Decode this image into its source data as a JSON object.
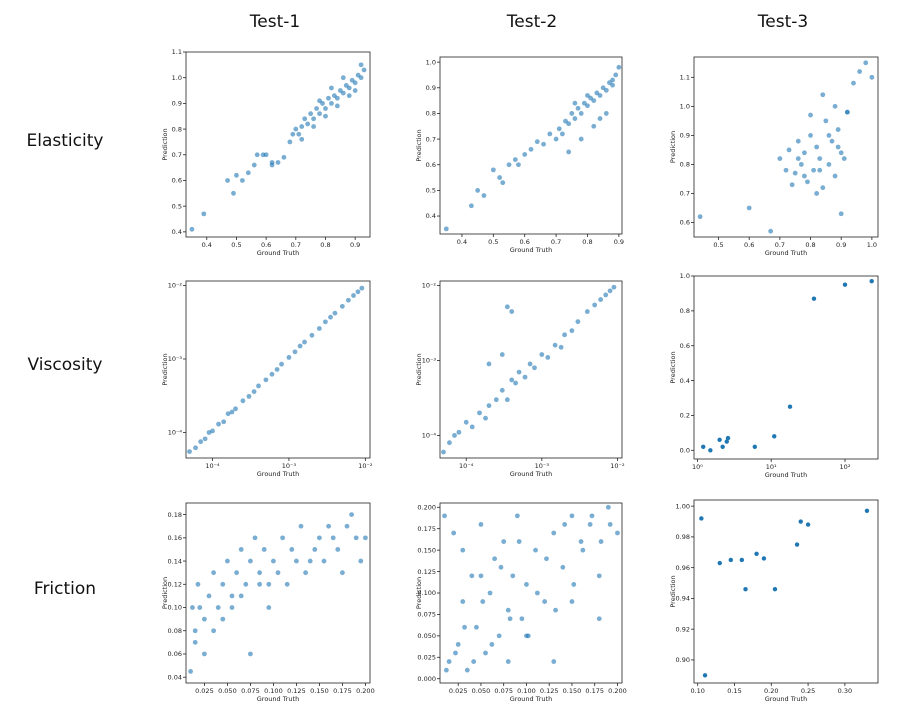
{
  "columns": [
    "Test-1",
    "Test-2",
    "Test-3"
  ],
  "rows": [
    "Elasticity",
    "Viscosity",
    "Friction"
  ],
  "colors": {
    "point": "#1f77b4",
    "axis": "#222222"
  },
  "chart_data": [
    {
      "type": "scatter",
      "row": "Elasticity",
      "col": "Test-1",
      "xlabel": "Ground Truth",
      "ylabel": "Prediction",
      "xlim": [
        0.33,
        0.95
      ],
      "ylim": [
        0.38,
        1.1
      ],
      "xscale": "linear",
      "yscale": "linear",
      "xticks": [
        0.4,
        0.5,
        0.6,
        0.7,
        0.8,
        0.9
      ],
      "yticks": [
        0.4,
        0.5,
        0.6,
        0.7,
        0.8,
        0.9,
        1.0,
        1.1
      ],
      "xtick_labels": [
        "0.4",
        "0.5",
        "0.6",
        "0.7",
        "0.8",
        "0.9"
      ],
      "ytick_labels": [
        "0.4",
        "0.5",
        "0.6",
        "0.7",
        "0.8",
        "0.9",
        "1.0",
        "1.1"
      ],
      "x": [
        0.35,
        0.39,
        0.47,
        0.49,
        0.5,
        0.52,
        0.54,
        0.56,
        0.57,
        0.59,
        0.6,
        0.62,
        0.62,
        0.64,
        0.66,
        0.68,
        0.69,
        0.7,
        0.71,
        0.72,
        0.73,
        0.74,
        0.75,
        0.76,
        0.77,
        0.78,
        0.79,
        0.8,
        0.81,
        0.82,
        0.83,
        0.84,
        0.85,
        0.86,
        0.87,
        0.88,
        0.89,
        0.9,
        0.91,
        0.92,
        0.93,
        0.72,
        0.76,
        0.8,
        0.84,
        0.88,
        0.92,
        0.78,
        0.82,
        0.86,
        0.9
      ],
      "y": [
        0.41,
        0.47,
        0.6,
        0.55,
        0.62,
        0.6,
        0.63,
        0.66,
        0.7,
        0.7,
        0.7,
        0.67,
        0.66,
        0.67,
        0.69,
        0.75,
        0.78,
        0.8,
        0.78,
        0.81,
        0.84,
        0.82,
        0.86,
        0.84,
        0.88,
        0.86,
        0.9,
        0.88,
        0.92,
        0.9,
        0.93,
        0.92,
        0.95,
        0.94,
        0.97,
        0.96,
        0.99,
        0.98,
        1.01,
        1.0,
        1.03,
        0.76,
        0.81,
        0.85,
        0.89,
        0.93,
        1.05,
        0.91,
        0.96,
        1.0,
        0.95
      ]
    },
    {
      "type": "scatter",
      "row": "Elasticity",
      "col": "Test-2",
      "xlabel": "Ground Truth",
      "ylabel": "Prediction",
      "xlim": [
        0.33,
        0.91
      ],
      "ylim": [
        0.33,
        1.02
      ],
      "xscale": "linear",
      "yscale": "linear",
      "xticks": [
        0.4,
        0.5,
        0.6,
        0.7,
        0.8,
        0.9
      ],
      "yticks": [
        0.4,
        0.5,
        0.6,
        0.7,
        0.8,
        0.9,
        1.0
      ],
      "xtick_labels": [
        "0.4",
        "0.5",
        "0.6",
        "0.7",
        "0.8",
        "0.9"
      ],
      "ytick_labels": [
        "0.4",
        "0.5",
        "0.6",
        "0.7",
        "0.8",
        "0.9",
        "1.0"
      ],
      "x": [
        0.35,
        0.43,
        0.45,
        0.47,
        0.5,
        0.52,
        0.53,
        0.55,
        0.57,
        0.58,
        0.6,
        0.62,
        0.64,
        0.66,
        0.68,
        0.7,
        0.71,
        0.72,
        0.73,
        0.74,
        0.75,
        0.76,
        0.77,
        0.78,
        0.79,
        0.8,
        0.81,
        0.82,
        0.83,
        0.84,
        0.85,
        0.86,
        0.87,
        0.88,
        0.89,
        0.9,
        0.74,
        0.78,
        0.82,
        0.86,
        0.76,
        0.8,
        0.84,
        0.88
      ],
      "y": [
        0.35,
        0.44,
        0.5,
        0.48,
        0.58,
        0.55,
        0.53,
        0.6,
        0.62,
        0.6,
        0.64,
        0.66,
        0.69,
        0.68,
        0.72,
        0.7,
        0.74,
        0.72,
        0.77,
        0.76,
        0.8,
        0.78,
        0.82,
        0.8,
        0.84,
        0.83,
        0.86,
        0.85,
        0.88,
        0.87,
        0.9,
        0.89,
        0.92,
        0.93,
        0.95,
        0.98,
        0.65,
        0.7,
        0.75,
        0.8,
        0.84,
        0.87,
        0.78,
        0.91
      ]
    },
    {
      "type": "scatter",
      "row": "Elasticity",
      "col": "Test-3",
      "xlabel": "Ground Truth",
      "ylabel": "Prediction",
      "xlim": [
        0.42,
        1.02
      ],
      "ylim": [
        0.55,
        1.17
      ],
      "xscale": "linear",
      "yscale": "linear",
      "xticks": [
        0.5,
        0.6,
        0.7,
        0.8,
        0.9,
        1.0
      ],
      "yticks": [
        0.6,
        0.7,
        0.8,
        0.9,
        1.0,
        1.1
      ],
      "xtick_labels": [
        "0.5",
        "0.6",
        "0.7",
        "0.8",
        "0.9",
        "1.0"
      ],
      "ytick_labels": [
        "0.6",
        "0.7",
        "0.8",
        "0.9",
        "1.0",
        "1.1"
      ],
      "x": [
        0.44,
        0.6,
        0.67,
        0.7,
        0.72,
        0.73,
        0.75,
        0.76,
        0.77,
        0.78,
        0.79,
        0.8,
        0.81,
        0.82,
        0.83,
        0.84,
        0.85,
        0.86,
        0.87,
        0.88,
        0.89,
        0.9,
        0.91,
        0.92,
        0.94,
        0.96,
        0.98,
        1.0,
        0.74,
        0.78,
        0.82,
        0.86,
        0.9,
        0.8,
        0.84,
        0.88,
        0.92,
        0.76,
        0.83,
        0.89
      ],
      "y": [
        0.62,
        0.65,
        0.57,
        0.82,
        0.78,
        0.85,
        0.77,
        0.88,
        0.8,
        0.84,
        0.74,
        0.9,
        0.78,
        0.86,
        0.82,
        0.72,
        0.95,
        0.8,
        0.88,
        0.76,
        0.92,
        0.84,
        0.82,
        0.98,
        1.08,
        1.12,
        1.15,
        1.1,
        0.73,
        0.76,
        0.7,
        0.9,
        0.63,
        0.97,
        1.04,
        1.0,
        0.98,
        0.82,
        0.78,
        0.86
      ]
    },
    {
      "type": "scatter",
      "row": "Viscosity",
      "col": "Test-1",
      "xlabel": "Ground Truth",
      "ylabel": "Prediction",
      "xlim": [
        4.5e-05,
        0.0115
      ],
      "ylim": [
        4.5e-05,
        0.0115
      ],
      "xscale": "log",
      "yscale": "log",
      "xticks": [
        0.0001,
        0.001,
        0.01
      ],
      "yticks": [
        0.0001,
        0.001,
        0.01
      ],
      "xtick_labels": [
        "10⁻⁴",
        "10⁻³",
        "10⁻²"
      ],
      "ytick_labels": [
        "10⁻⁴",
        "10⁻³",
        "10⁻²"
      ],
      "x": [
        5e-05,
        6e-05,
        7e-05,
        8e-05,
        9e-05,
        0.0001,
        0.00012,
        0.00014,
        0.00016,
        0.00018,
        0.0002,
        0.00025,
        0.0003,
        0.00035,
        0.0004,
        0.0005,
        0.0006,
        0.0007,
        0.0008,
        0.001,
        0.0012,
        0.0014,
        0.0016,
        0.002,
        0.0025,
        0.003,
        0.0035,
        0.004,
        0.005,
        0.006,
        0.007,
        0.008,
        0.009
      ],
      "y": [
        5.5e-05,
        6.2e-05,
        7.5e-05,
        8.2e-05,
        0.0001,
        0.000105,
        0.00013,
        0.00014,
        0.00018,
        0.00019,
        0.00021,
        0.00027,
        0.00031,
        0.00036,
        0.00043,
        0.00052,
        0.00062,
        0.00072,
        0.00085,
        0.00105,
        0.00125,
        0.0015,
        0.0017,
        0.0021,
        0.0026,
        0.0032,
        0.0037,
        0.0042,
        0.0052,
        0.0063,
        0.0073,
        0.0082,
        0.0092
      ]
    },
    {
      "type": "scatter",
      "row": "Viscosity",
      "col": "Test-2",
      "xlabel": "Ground Truth",
      "ylabel": "Prediction",
      "xlim": [
        4.5e-05,
        0.0115
      ],
      "ylim": [
        5e-05,
        0.0115
      ],
      "xscale": "log",
      "yscale": "log",
      "xticks": [
        0.0001,
        0.001,
        0.01
      ],
      "yticks": [
        0.0001,
        0.001,
        0.01
      ],
      "xtick_labels": [
        "10⁻⁴",
        "10⁻³",
        "10⁻²"
      ],
      "ytick_labels": [
        "10⁻⁴",
        "10⁻³",
        "10⁻²"
      ],
      "x": [
        5e-05,
        6e-05,
        7e-05,
        8e-05,
        0.0001,
        0.00012,
        0.00015,
        0.00018,
        0.0002,
        0.00025,
        0.0003,
        0.00035,
        0.0004,
        0.00045,
        0.0005,
        0.0006,
        0.0007,
        0.0008,
        0.001,
        0.0012,
        0.0015,
        0.0018,
        0.002,
        0.0025,
        0.003,
        0.004,
        0.005,
        0.006,
        0.007,
        0.008,
        0.009,
        0.00035,
        0.0004,
        0.0003,
        0.0002
      ],
      "y": [
        6e-05,
        8e-05,
        0.0001,
        0.00011,
        0.00015,
        0.00013,
        0.0002,
        0.00017,
        0.00025,
        0.0003,
        0.0004,
        0.0003,
        0.00055,
        0.0005,
        0.0007,
        0.0006,
        0.0009,
        0.0008,
        0.0012,
        0.0011,
        0.0016,
        0.0015,
        0.0022,
        0.0025,
        0.0033,
        0.0045,
        0.0055,
        0.0065,
        0.0075,
        0.0085,
        0.0095,
        0.0052,
        0.0045,
        0.0012,
        0.0009
      ]
    },
    {
      "type": "scatter",
      "row": "Viscosity",
      "col": "Test-3",
      "xlabel": "Ground Truth",
      "ylabel": "Prediction",
      "xlim": [
        0.9,
        280
      ],
      "ylim": [
        -0.05,
        1.0
      ],
      "xscale": "log",
      "yscale": "linear",
      "xticks": [
        1,
        10,
        100
      ],
      "yticks": [
        0.0,
        0.2,
        0.4,
        0.6,
        0.8,
        1.0
      ],
      "xtick_labels": [
        "10⁰",
        "10¹",
        "10²"
      ],
      "ytick_labels": [
        "0.0",
        "0.2",
        "0.4",
        "0.6",
        "0.8",
        "1.0"
      ],
      "x": [
        1.2,
        1.5,
        2.0,
        2.2,
        2.5,
        2.6,
        6.0,
        11.0,
        18.0,
        38.0,
        100.0,
        230.0
      ],
      "y": [
        0.02,
        0.0,
        0.06,
        0.02,
        0.05,
        0.07,
        0.02,
        0.08,
        0.25,
        0.87,
        0.95,
        0.97
      ]
    },
    {
      "type": "scatter",
      "row": "Friction",
      "col": "Test-1",
      "xlabel": "Ground Truth",
      "ylabel": "Prediction",
      "xlim": [
        0.005,
        0.205
      ],
      "ylim": [
        0.035,
        0.19
      ],
      "xscale": "linear",
      "yscale": "linear",
      "xticks": [
        0.025,
        0.05,
        0.075,
        0.1,
        0.125,
        0.15,
        0.175,
        0.2
      ],
      "yticks": [
        0.04,
        0.06,
        0.08,
        0.1,
        0.12,
        0.14,
        0.16,
        0.18
      ],
      "xtick_labels": [
        "0.025",
        "0.050",
        "0.075",
        "0.100",
        "0.125",
        "0.150",
        "0.175",
        "0.200"
      ],
      "ytick_labels": [
        "0.04",
        "0.06",
        "0.08",
        "0.10",
        "0.12",
        "0.14",
        "0.16",
        "0.18"
      ],
      "x": [
        0.01,
        0.012,
        0.015,
        0.018,
        0.02,
        0.025,
        0.03,
        0.035,
        0.04,
        0.045,
        0.05,
        0.055,
        0.06,
        0.065,
        0.07,
        0.075,
        0.08,
        0.085,
        0.09,
        0.095,
        0.1,
        0.11,
        0.12,
        0.13,
        0.14,
        0.15,
        0.16,
        0.17,
        0.18,
        0.19,
        0.2,
        0.015,
        0.025,
        0.035,
        0.045,
        0.055,
        0.065,
        0.075,
        0.085,
        0.095,
        0.105,
        0.115,
        0.125,
        0.135,
        0.145,
        0.155,
        0.165,
        0.175,
        0.185,
        0.195
      ],
      "y": [
        0.045,
        0.1,
        0.07,
        0.12,
        0.1,
        0.09,
        0.11,
        0.13,
        0.1,
        0.12,
        0.14,
        0.11,
        0.13,
        0.15,
        0.12,
        0.14,
        0.16,
        0.13,
        0.15,
        0.12,
        0.14,
        0.16,
        0.15,
        0.17,
        0.14,
        0.16,
        0.17,
        0.15,
        0.17,
        0.16,
        0.16,
        0.08,
        0.06,
        0.08,
        0.09,
        0.1,
        0.11,
        0.06,
        0.12,
        0.1,
        0.13,
        0.12,
        0.14,
        0.13,
        0.15,
        0.14,
        0.16,
        0.13,
        0.18,
        0.14
      ]
    },
    {
      "type": "scatter",
      "row": "Friction",
      "col": "Test-2",
      "xlabel": "Ground Truth",
      "ylabel": "Prediction",
      "xlim": [
        0.005,
        0.205
      ],
      "ylim": [
        -0.005,
        0.205
      ],
      "xscale": "linear",
      "yscale": "linear",
      "xticks": [
        0.025,
        0.05,
        0.075,
        0.1,
        0.125,
        0.15,
        0.175,
        0.2
      ],
      "yticks": [
        0.0,
        0.025,
        0.05,
        0.075,
        0.1,
        0.125,
        0.15,
        0.175,
        0.2
      ],
      "xtick_labels": [
        "0.025",
        "0.050",
        "0.075",
        "0.100",
        "0.125",
        "0.150",
        "0.175",
        "0.200"
      ],
      "ytick_labels": [
        "0.000",
        "0.025",
        "0.050",
        "0.075",
        "0.100",
        "0.125",
        "0.150",
        "0.175",
        "0.200"
      ],
      "x": [
        0.01,
        0.015,
        0.02,
        0.025,
        0.03,
        0.035,
        0.04,
        0.045,
        0.05,
        0.055,
        0.06,
        0.065,
        0.07,
        0.075,
        0.08,
        0.085,
        0.09,
        0.095,
        0.1,
        0.11,
        0.12,
        0.13,
        0.14,
        0.15,
        0.16,
        0.17,
        0.18,
        0.19,
        0.2,
        0.012,
        0.022,
        0.032,
        0.042,
        0.052,
        0.062,
        0.072,
        0.082,
        0.092,
        0.102,
        0.112,
        0.122,
        0.132,
        0.142,
        0.152,
        0.162,
        0.172,
        0.182,
        0.192,
        0.05,
        0.1,
        0.15,
        0.03,
        0.08,
        0.13,
        0.18
      ],
      "y": [
        0.19,
        0.02,
        0.17,
        0.04,
        0.15,
        0.01,
        0.12,
        0.06,
        0.18,
        0.03,
        0.1,
        0.14,
        0.05,
        0.16,
        0.08,
        0.12,
        0.19,
        0.07,
        0.11,
        0.15,
        0.09,
        0.17,
        0.13,
        0.19,
        0.16,
        0.18,
        0.12,
        0.2,
        0.17,
        0.01,
        0.03,
        0.06,
        0.02,
        0.09,
        0.04,
        0.13,
        0.07,
        0.16,
        0.05,
        0.1,
        0.14,
        0.08,
        0.18,
        0.11,
        0.15,
        0.19,
        0.16,
        0.18,
        0.12,
        0.05,
        0.09,
        0.09,
        0.02,
        0.02,
        0.07
      ]
    },
    {
      "type": "scatter",
      "row": "Friction",
      "col": "Test-3",
      "xlabel": "Ground Truth",
      "ylabel": "Prediction",
      "xlim": [
        0.095,
        0.345
      ],
      "ylim": [
        0.885,
        1.004
      ],
      "xscale": "linear",
      "yscale": "linear",
      "xticks": [
        0.1,
        0.15,
        0.2,
        0.25,
        0.3
      ],
      "yticks": [
        0.9,
        0.92,
        0.94,
        0.96,
        0.98,
        1.0
      ],
      "xtick_labels": [
        "0.10",
        "0.15",
        "0.20",
        "0.25",
        "0.30"
      ],
      "ytick_labels": [
        "0.90",
        "0.92",
        "0.94",
        "0.96",
        "0.98",
        "1.00"
      ],
      "x": [
        0.105,
        0.11,
        0.13,
        0.145,
        0.16,
        0.165,
        0.18,
        0.19,
        0.205,
        0.235,
        0.24,
        0.25,
        0.33
      ],
      "y": [
        0.992,
        0.89,
        0.963,
        0.965,
        0.965,
        0.946,
        0.969,
        0.966,
        0.946,
        0.975,
        0.99,
        0.988,
        0.997
      ]
    }
  ]
}
